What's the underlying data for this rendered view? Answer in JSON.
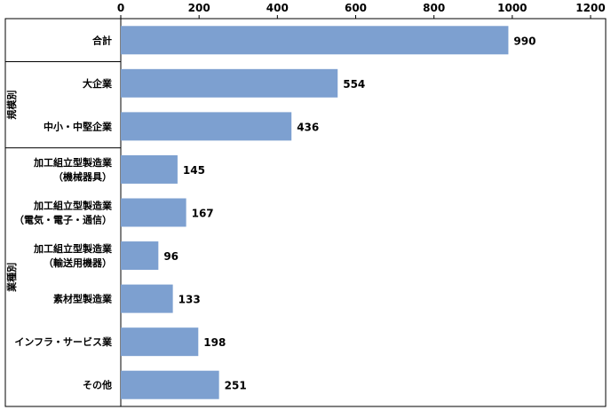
{
  "chart_data": {
    "type": "bar",
    "orientation": "horizontal",
    "title": "",
    "xlabel": "",
    "ylabel": "",
    "xlim": [
      0,
      1200
    ],
    "x_ticks": [
      "0",
      "200",
      "400",
      "600",
      "800",
      "1000",
      "1200"
    ],
    "x_axis_position": "top",
    "grid": false,
    "bar_color": "#7da0d0",
    "categories": [
      [
        "合計"
      ],
      [
        "大企業"
      ],
      [
        "中小・中堅企業"
      ],
      [
        "加工組立型製造業",
        "（機械器具）"
      ],
      [
        "加工組立型製造業",
        "（電気・電子・通信）"
      ],
      [
        "加工組立型製造業",
        "（輸送用機器）"
      ],
      [
        "素材型製造業"
      ],
      [
        "インフラ・サービス業"
      ],
      [
        "その他"
      ]
    ],
    "values": [
      990,
      554,
      436,
      145,
      167,
      96,
      133,
      198,
      251
    ],
    "value_labels": [
      "990",
      "554",
      "436",
      "145",
      "167",
      "96",
      "133",
      "198",
      "251"
    ],
    "groups": [
      {
        "label": "規模別",
        "start": 1,
        "end": 2
      },
      {
        "label": "業種別",
        "start": 3,
        "end": 8
      }
    ]
  }
}
